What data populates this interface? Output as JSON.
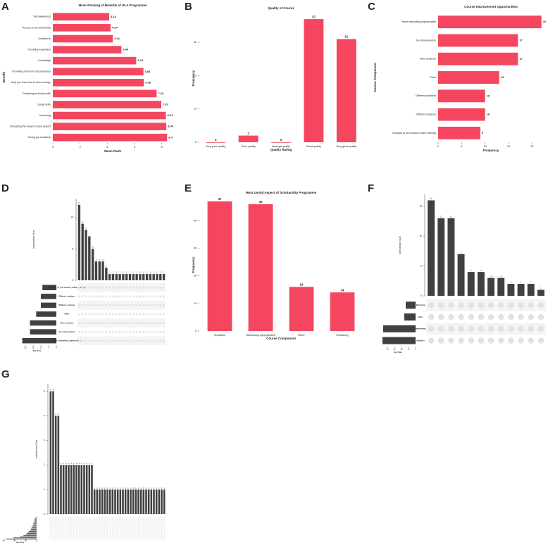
{
  "chart_data": [
    {
      "type": "hbar",
      "label": "A",
      "title": "Mean Ranking of Benefits of HLA Programme",
      "x_label": "Mean Rank",
      "y_label": "Benefit",
      "categories": [
        "Self awareness",
        "Access to the community",
        "Confidence",
        "Providing Inspiration",
        "Knowledge",
        "Providing a forum to discuss ideas",
        "Help you learn how to drive change",
        "Practicing technical skills",
        "Social skills",
        "Mentoring",
        "Increasing the impact of your project",
        "Giving you feedback"
      ],
      "values": [
        4.14,
        4.24,
        4.41,
        5.04,
        6.13,
        6.66,
        6.69,
        7.63,
        7.97,
        8.31,
        8.34,
        8.4
      ],
      "color": "#f4475f",
      "xlim": [
        0,
        8.8
      ],
      "xticks": [
        0,
        2,
        4,
        6,
        8
      ]
    },
    {
      "type": "bar",
      "label": "B",
      "title": "Quality of Course",
      "x_label": "Quality Rating",
      "y_label": "Frequency",
      "categories": [
        "Very poor quality",
        "Poor quality",
        "Average quality",
        "Good quality",
        "Very good quality"
      ],
      "values": [
        0,
        2,
        0,
        37,
        31
      ],
      "color": "#f4475f",
      "ylim": [
        0,
        38.5
      ],
      "yticks": [
        0,
        10,
        20,
        30
      ]
    },
    {
      "type": "hbar",
      "label": "C",
      "title": "Course Improvement Opportunities",
      "x_label": "Frequency",
      "y_label": "Course Component",
      "categories": [
        "More networking opportunities",
        "No improvements",
        "More sessions",
        "Other",
        "Different speakers",
        "Different sessions",
        "Changes to pre-session online learning"
      ],
      "values": [
        22,
        17,
        17,
        13,
        10,
        10,
        9
      ],
      "color": "#f4475f",
      "xlim": [
        0,
        22.5
      ],
      "xticks": [
        0,
        5,
        10,
        15,
        20
      ]
    },
    {
      "type": "upset",
      "label": "D",
      "y_label": "Intersection Size",
      "x_label": "Set Size",
      "set_names": [
        "Changes_to_pre-session_online_learning",
        "Different_speakers",
        "Different_sessions",
        "Other",
        "More_sessions",
        "No_improvements",
        "More_networking_opportunities"
      ],
      "set_sizes": [
        9,
        10,
        10,
        13,
        17,
        17,
        22
      ],
      "set_size_lim": [
        0,
        25
      ],
      "set_size_ticks": [
        20,
        15,
        10,
        5,
        0
      ],
      "values": [
        12,
        9,
        8,
        7,
        5,
        3,
        3,
        3,
        2,
        1,
        1,
        1,
        1,
        1,
        1,
        1,
        1,
        1,
        1,
        1,
        1,
        1,
        1,
        1,
        1,
        1
      ],
      "color": "#404040",
      "ylim": [
        0,
        13
      ],
      "yticks": [
        0,
        5,
        10
      ]
    },
    {
      "type": "bar",
      "label": "E",
      "title": "Most Useful Aspect of Scholarship Programme",
      "x_label": "Course Component",
      "y_label": "Frequency",
      "categories": [
        "Speakers",
        "Networking opportunities",
        "Other",
        "Mentoring"
      ],
      "values": [
        47,
        46,
        16,
        14
      ],
      "color": "#f4475f",
      "ylim": [
        0,
        48
      ],
      "yticks": [
        0,
        10,
        20,
        30,
        40
      ]
    },
    {
      "type": "upset",
      "label": "F",
      "y_label": "Intersection Size",
      "x_label": "Set Size",
      "set_names": [
        "Mentoring",
        "Other",
        "Networking",
        "Speakers"
      ],
      "set_sizes": [
        14,
        16,
        46,
        47
      ],
      "set_size_lim": [
        0,
        50
      ],
      "set_size_ticks": [
        40,
        30,
        20,
        10,
        0
      ],
      "values": [
        16,
        13,
        13,
        7,
        4,
        4,
        3,
        3,
        2,
        2,
        2,
        1
      ],
      "color": "#404040",
      "ylim": [
        0,
        17
      ],
      "yticks": [
        0,
        5,
        10,
        15
      ]
    },
    {
      "type": "upset",
      "label": "G",
      "y_label": "Intersection Size",
      "x_label": "Set Size",
      "set_sizes": [
        1,
        1,
        2,
        2,
        2,
        3,
        3,
        3,
        4,
        4,
        5,
        5,
        6,
        7,
        8,
        9,
        10,
        12,
        15,
        21,
        28
      ],
      "set_size_lim": [
        0,
        30
      ],
      "set_size_ticks": [
        30,
        20,
        10,
        0
      ],
      "values": [
        5,
        5,
        4,
        4,
        2,
        2,
        2,
        2,
        2,
        2,
        2,
        2,
        2,
        2,
        2,
        2,
        2,
        1,
        1,
        1,
        1,
        1,
        1,
        1,
        1,
        1,
        1,
        1,
        1,
        1,
        1,
        1,
        1,
        1,
        1,
        1,
        1,
        1,
        1,
        1,
        1,
        1,
        1,
        1,
        1
      ],
      "color": "#404040",
      "ylim": [
        0,
        5.3
      ],
      "yticks": [
        0,
        1,
        2,
        3,
        4,
        5
      ]
    }
  ]
}
